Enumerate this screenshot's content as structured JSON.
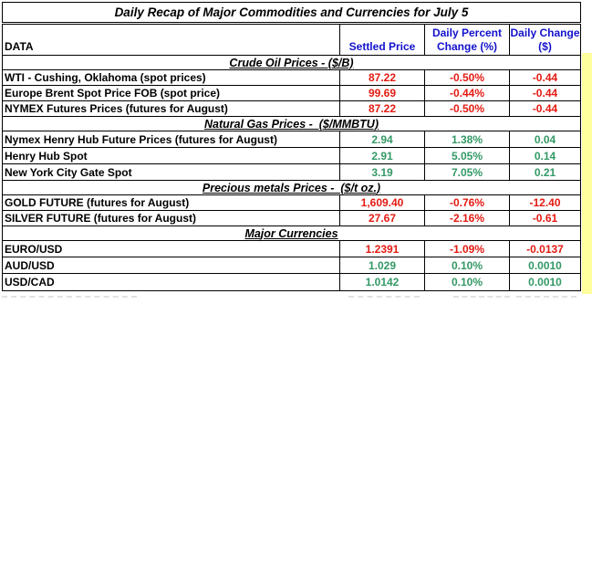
{
  "title": "Daily Recap of Major Commodities and Currencies for  July 5",
  "columns": {
    "data": "DATA",
    "settled": "Settled Price",
    "percent": "Daily Percent Change (%)",
    "change": "Daily Change ($)"
  },
  "sections": [
    {
      "heading": "Crude Oil Prices - ($/B)",
      "rows": [
        {
          "label": "WTI - Cushing, Oklahoma (spot prices)",
          "settled": "87.22",
          "percent": "-0.50%",
          "change": "-0.44",
          "trend": "negative"
        },
        {
          "label": "Europe Brent Spot Price FOB (spot price)",
          "settled": "99.69",
          "percent": "-0.44%",
          "change": "-0.44",
          "trend": "negative"
        },
        {
          "label": "NYMEX Futures Prices (futures for August)",
          "settled": "87.22",
          "percent": "-0.50%",
          "change": "-0.44",
          "trend": "negative"
        }
      ]
    },
    {
      "heading": "Natural Gas Prices -  ($/MMBTU)",
      "rows": [
        {
          "label": "Nymex Henry Hub Future Prices (futures for August)",
          "settled": "2.94",
          "percent": "1.38%",
          "change": "0.04",
          "trend": "positive"
        },
        {
          "label": "Henry Hub Spot",
          "settled": "2.91",
          "percent": "5.05%",
          "change": "0.14",
          "trend": "positive"
        },
        {
          "label": "New York City Gate Spot",
          "settled": "3.19",
          "percent": "7.05%",
          "change": "0.21",
          "trend": "positive"
        }
      ]
    },
    {
      "heading": "Precious metals Prices -  ($/t oz.)",
      "rows": [
        {
          "label": "GOLD FUTURE (futures for August)",
          "settled": "1,609.40",
          "percent": "-0.76%",
          "change": "-12.40",
          "trend": "negative"
        },
        {
          "label": "SILVER FUTURE (futures for August)",
          "settled": "27.67",
          "percent": "-2.16%",
          "change": "-0.61",
          "trend": "negative"
        }
      ]
    },
    {
      "heading": "Major Currencies",
      "rows": [
        {
          "label": "EURO/USD",
          "settled": "1.2391",
          "percent": "-1.09%",
          "change": "-0.0137",
          "trend": "negative"
        },
        {
          "label": "AUD/USD",
          "settled": "1.029",
          "percent": "0.10%",
          "change": "0.0010",
          "trend": "positive"
        },
        {
          "label": "USD/CAD",
          "settled": "1.0142",
          "percent": "0.10%",
          "change": "0.0010",
          "trend": "positive"
        }
      ]
    }
  ],
  "colors": {
    "negative": "#e41b13",
    "positive": "#339966",
    "header_blue": "#1212cc",
    "strip_yellow": "#ffff9e"
  },
  "chart_data": {
    "type": "table",
    "title": "Daily Recap of Major Commodities and Currencies for July 5",
    "columns": [
      "DATA",
      "Settled Price",
      "Daily Percent Change (%)",
      "Daily Change ($)"
    ],
    "groups": [
      {
        "group": "Crude Oil Prices - ($/B)",
        "rows": [
          [
            "WTI - Cushing, Oklahoma (spot prices)",
            87.22,
            "-0.50%",
            -0.44
          ],
          [
            "Europe Brent Spot Price FOB (spot price)",
            99.69,
            "-0.44%",
            -0.44
          ],
          [
            "NYMEX Futures Prices (futures for August)",
            87.22,
            "-0.50%",
            -0.44
          ]
        ]
      },
      {
        "group": "Natural Gas Prices - ($/MMBTU)",
        "rows": [
          [
            "Nymex Henry Hub Future Prices (futures for August)",
            2.94,
            "1.38%",
            0.04
          ],
          [
            "Henry Hub Spot",
            2.91,
            "5.05%",
            0.14
          ],
          [
            "New York City Gate Spot",
            3.19,
            "7.05%",
            0.21
          ]
        ]
      },
      {
        "group": "Precious metals Prices - ($/t oz.)",
        "rows": [
          [
            "GOLD FUTURE (futures for August)",
            1609.4,
            "-0.76%",
            -12.4
          ],
          [
            "SILVER FUTURE (futures for August)",
            27.67,
            "-2.16%",
            -0.61
          ]
        ]
      },
      {
        "group": "Major Currencies",
        "rows": [
          [
            "EURO/USD",
            1.2391,
            "-1.09%",
            -0.0137
          ],
          [
            "AUD/USD",
            1.029,
            "0.10%",
            0.001
          ],
          [
            "USD/CAD",
            1.0142,
            "0.10%",
            0.001
          ]
        ]
      }
    ]
  }
}
